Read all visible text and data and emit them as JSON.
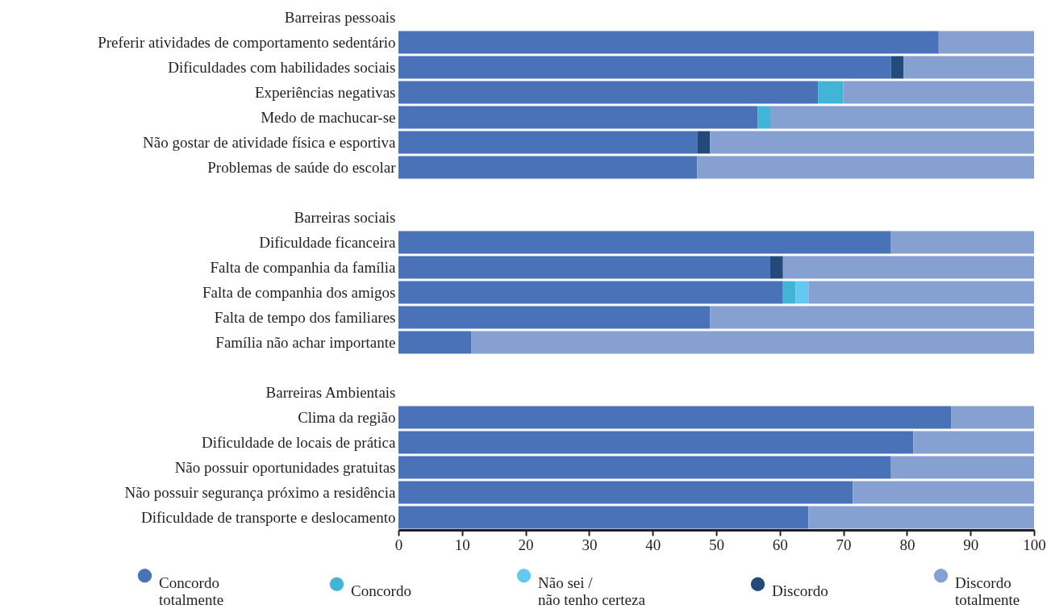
{
  "chart_data": {
    "type": "bar",
    "orientation": "horizontal",
    "stacked": true,
    "legend": "bottom",
    "grid": false,
    "categories": [
      "Barreiras pessoais",
      "Preferir atividades de comportamento sedentário",
      "Dificuldades com habilidades sociais",
      "Experiências negativas",
      "Medo de machucar-se",
      "Não gostar de atividade física e esportiva",
      "Problemas de saúde do escolar",
      null,
      "Barreiras sociais",
      "Dificuldade ficanceira",
      "Falta de companhia da família",
      "Falta de companhia dos amigos",
      "Falta de tempo dos familiares",
      "Família não achar importante",
      null,
      "Barreiras Ambientais",
      "Clima da região",
      "Dificuldade de locais de prática",
      "Não possuir oportunidades gratuitas",
      "Não possuir segurança próximo a residência",
      "Dificuldade de transporte e deslocamento"
    ],
    "xlim": [
      0,
      100
    ],
    "xticks": [
      0,
      10,
      20,
      30,
      40,
      50,
      60,
      70,
      80,
      90,
      100
    ],
    "series": [
      {
        "name": "Concordo totalmente",
        "color": "#4a72b8",
        "values": [
          null,
          85,
          77.5,
          66,
          56.5,
          47,
          47,
          null,
          null,
          77.5,
          58.5,
          60.5,
          49,
          11.5,
          null,
          null,
          87,
          81,
          77.5,
          71.5,
          64.5
        ]
      },
      {
        "name": "Concordo",
        "color": "#42b5d6",
        "values": [
          null,
          null,
          null,
          4,
          2,
          null,
          null,
          null,
          null,
          null,
          null,
          2,
          null,
          null,
          null,
          null,
          null,
          null,
          null,
          null,
          null
        ]
      },
      {
        "name": "Não sei / não tenho certeza",
        "color": "#62c9f0",
        "values": [
          null,
          null,
          null,
          null,
          null,
          null,
          null,
          null,
          null,
          null,
          null,
          2,
          null,
          null,
          null,
          null,
          null,
          null,
          null,
          null,
          null
        ]
      },
      {
        "name": "Discordo",
        "color": "#234a7a",
        "values": [
          null,
          null,
          2,
          null,
          null,
          2,
          null,
          null,
          null,
          null,
          2,
          null,
          null,
          null,
          null,
          null,
          null,
          null,
          null,
          null,
          null
        ]
      },
      {
        "name": "Discordo totalmente",
        "color": "#87a0d2",
        "values": [
          null,
          15,
          20.5,
          30,
          41.5,
          51,
          53,
          null,
          null,
          22.5,
          39.5,
          35.5,
          51,
          88.5,
          null,
          null,
          13,
          19,
          22.5,
          28.5,
          35.5
        ]
      }
    ]
  }
}
